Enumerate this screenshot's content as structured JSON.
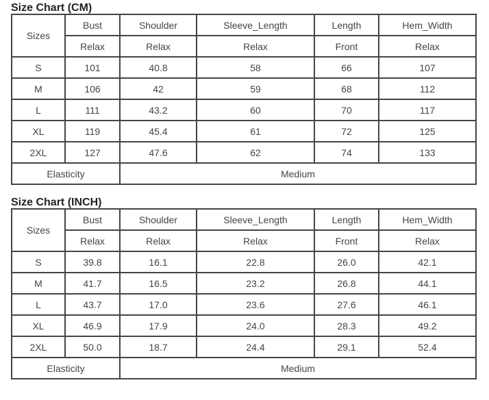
{
  "tables": [
    {
      "title": "Size Chart (CM)",
      "sizes_label": "Sizes",
      "headers": [
        "Bust",
        "Shoulder",
        "Sleeve_Length",
        "Length",
        "Hem_Width"
      ],
      "subheaders": [
        "Relax",
        "Relax",
        "Relax",
        "Front",
        "Relax"
      ],
      "rows": [
        [
          "S",
          "101",
          "40.8",
          "58",
          "66",
          "107"
        ],
        [
          "M",
          "106",
          "42",
          "59",
          "68",
          "112"
        ],
        [
          "L",
          "111",
          "43.2",
          "60",
          "70",
          "117"
        ],
        [
          "XL",
          "119",
          "45.4",
          "61",
          "72",
          "125"
        ],
        [
          "2XL",
          "127",
          "47.6",
          "62",
          "74",
          "133"
        ]
      ],
      "footer_label": "Elasticity",
      "footer_value": "Medium"
    },
    {
      "title": "Size Chart (INCH)",
      "sizes_label": "Sizes",
      "headers": [
        "Bust",
        "Shoulder",
        "Sleeve_Length",
        "Length",
        "Hem_Width"
      ],
      "subheaders": [
        "Relax",
        "Relax",
        "Relax",
        "Front",
        "Relax"
      ],
      "rows": [
        [
          "S",
          "39.8",
          "16.1",
          "22.8",
          "26.0",
          "42.1"
        ],
        [
          "M",
          "41.7",
          "16.5",
          "23.2",
          "26.8",
          "44.1"
        ],
        [
          "L",
          "43.7",
          "17.0",
          "23.6",
          "27.6",
          "46.1"
        ],
        [
          "XL",
          "46.9",
          "17.9",
          "24.0",
          "28.3",
          "49.2"
        ],
        [
          "2XL",
          "50.0",
          "18.7",
          "24.4",
          "29.1",
          "52.4"
        ]
      ],
      "footer_label": "Elasticity",
      "footer_value": "Medium"
    }
  ]
}
